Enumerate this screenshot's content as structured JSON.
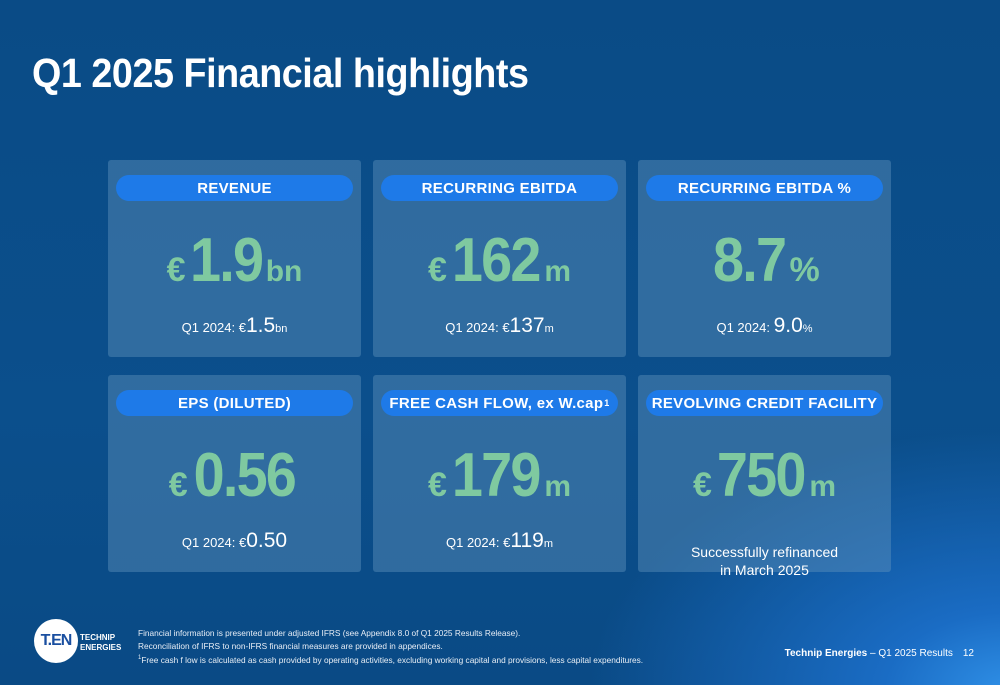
{
  "title": "Q1 2025 Financial highlights",
  "colors": {
    "background": "#0b4f8c",
    "card": "#3a6f9c",
    "header_pill": "#1e7ae8",
    "value": "#7fc9a0"
  },
  "cards": [
    {
      "header": "REVENUE",
      "currency": "€",
      "value": "1.9",
      "unit": "bn",
      "compare_prefix": "Q1 2024: €",
      "compare_value": "1.5",
      "compare_unit": "bn"
    },
    {
      "header": "RECURRING EBITDA",
      "currency": "€",
      "value": "162",
      "unit": "m",
      "compare_prefix": "Q1 2024: €",
      "compare_value": "137",
      "compare_unit": "m"
    },
    {
      "header": "RECURRING EBITDA %",
      "currency": "",
      "value": "8.7",
      "unit": "%",
      "compare_prefix": "Q1 2024: ",
      "compare_value": "9.0",
      "compare_unit": "%"
    },
    {
      "header": "EPS (DILUTED)",
      "currency": "€",
      "value": "0.56",
      "unit": "",
      "compare_prefix": "Q1 2024: €",
      "compare_value": "0.50",
      "compare_unit": ""
    },
    {
      "header": "FREE CASH FLOW, ex W.cap",
      "header_sup": "1",
      "currency": "€",
      "value": "179",
      "unit": "m",
      "compare_prefix": "Q1 2024: €",
      "compare_value": "119",
      "compare_unit": "m"
    },
    {
      "header": "REVOLVING CREDIT FACILITY",
      "currency": "€",
      "value": "750",
      "unit": "m",
      "note_line1": "Successfully refinanced",
      "note_line2": "in March 2025"
    }
  ],
  "logo": {
    "mark": "T.EN",
    "name_line1": "TECHNIP",
    "name_line2": "ENERGIES"
  },
  "footnotes": {
    "line1": "Financial information is presented under adjusted IFRS (see Appendix 8.0 of Q1 2025 Results Release).",
    "line2": "Reconciliation of IFRS to non-IFRS financial measures are provided in appendices.",
    "line3_sup": "1",
    "line3": "Free cash f low is calculated as cash provided by operating activities, excluding working capital and provisions, less capital expenditures."
  },
  "footer": {
    "brand": "Technip Energies",
    "separator": " – ",
    "doc": "Q1 2025 Results",
    "page": "12"
  }
}
